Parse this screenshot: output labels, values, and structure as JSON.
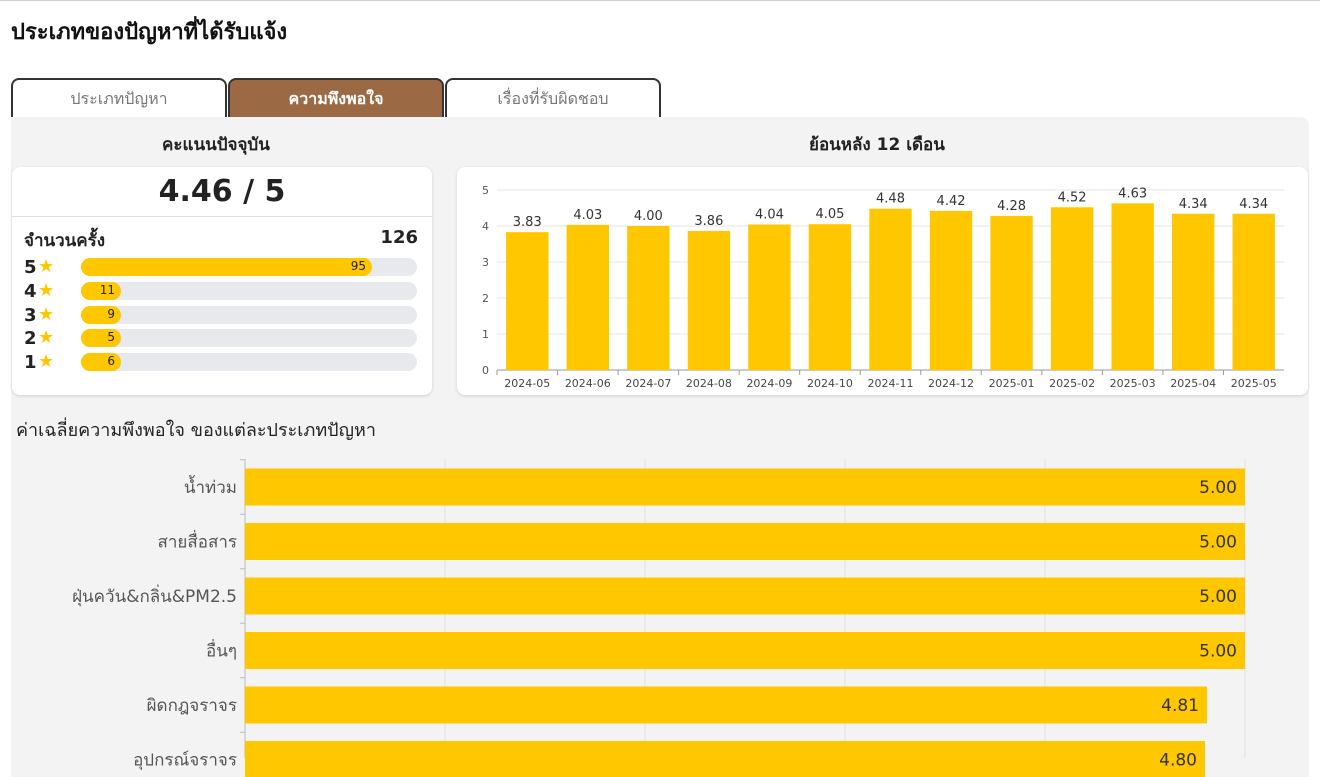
{
  "page_title": "ประเภทของปัญหาที่ได้รับแจ้ง",
  "tabs": [
    {
      "label": "ประเภทปัญหา",
      "active": false
    },
    {
      "label": "ความพึงพอใจ",
      "active": true
    },
    {
      "label": "เรื่องที่รับผิดชอบ",
      "active": false
    }
  ],
  "current": {
    "title": "คะแนนปัจจุบัน",
    "score_text": "4.46 / 5",
    "count_label": "จำนวนครั้ง",
    "count_value": "126",
    "ratings": [
      {
        "star": "5",
        "count": 95
      },
      {
        "star": "4",
        "count": 11
      },
      {
        "star": "3",
        "count": 9
      },
      {
        "star": "2",
        "count": 5
      },
      {
        "star": "1",
        "count": 6
      }
    ]
  },
  "colors": {
    "accent": "#ffc700",
    "tab_active": "#9b6a45",
    "track": "#e7e9ec"
  },
  "chart_data": [
    {
      "type": "bar",
      "title": "ย้อนหลัง 12 เดือน",
      "categories": [
        "2024-05",
        "2024-06",
        "2024-07",
        "2024-08",
        "2024-09",
        "2024-10",
        "2024-11",
        "2024-12",
        "2025-01",
        "2025-02",
        "2025-03",
        "2025-04",
        "2025-05"
      ],
      "values": [
        3.83,
        4.03,
        4.0,
        3.86,
        4.04,
        4.05,
        4.48,
        4.42,
        4.28,
        4.52,
        4.63,
        4.34,
        4.34
      ],
      "ylim": [
        0,
        5
      ],
      "yticks": [
        0,
        1,
        2,
        3,
        4,
        5
      ],
      "grid": true
    },
    {
      "type": "bar",
      "orientation": "horizontal",
      "title": "ค่าเฉลี่ยความพึงพอใจ ของแต่ละประเภทปัญหา",
      "categories": [
        "น้ำท่วม",
        "สายสื่อสาร",
        "ฝุ่นควัน&กลิ่น&PM2.5",
        "อื่นๆ",
        "ผิดกฎจราจร",
        "อุปกรณ์จราจร"
      ],
      "values": [
        5.0,
        5.0,
        5.0,
        5.0,
        4.81,
        4.8
      ],
      "xlim": [
        0,
        5
      ],
      "grid": true
    }
  ]
}
